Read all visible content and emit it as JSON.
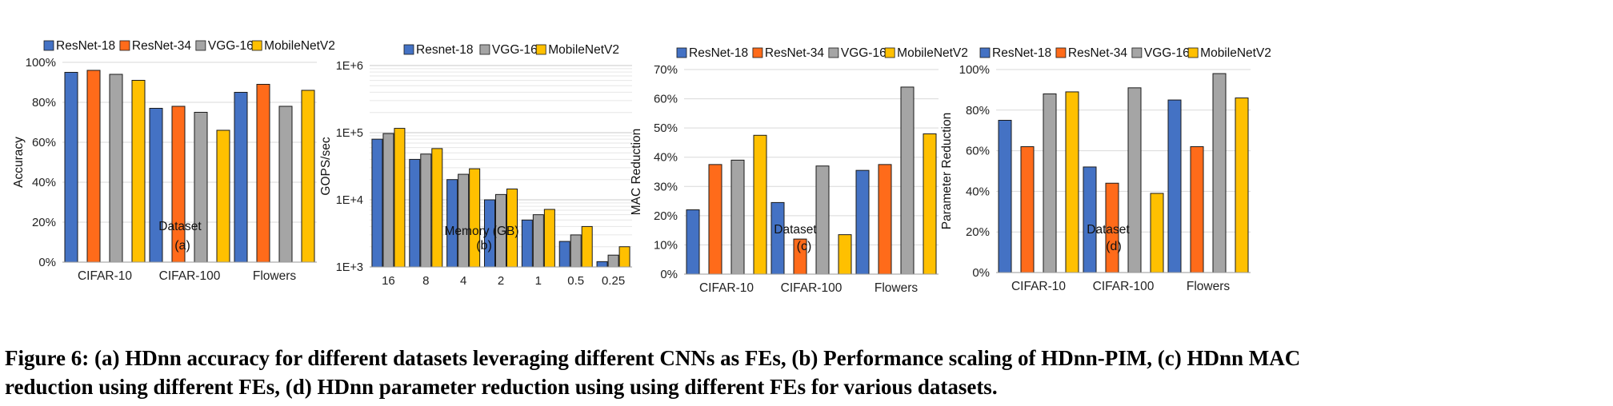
{
  "colors": {
    "ResNet-18": "#4472c4",
    "Resnet-18": "#4472c4",
    "ResNet-34": "#ff6b1a",
    "VGG-16": "#a5a5a5",
    "MobileNetV2": "#ffc000"
  },
  "chart_data": [
    {
      "id": "a",
      "type": "bar",
      "title": "",
      "legend": [
        "ResNet-18",
        "ResNet-34",
        "VGG-16",
        "MobileNetV2"
      ],
      "categories": [
        "CIFAR-10",
        "CIFAR-100",
        "Flowers"
      ],
      "series": [
        {
          "name": "ResNet-18",
          "values": [
            95,
            77,
            85
          ]
        },
        {
          "name": "ResNet-34",
          "values": [
            96,
            78,
            89
          ]
        },
        {
          "name": "VGG-16",
          "values": [
            94,
            75,
            78
          ]
        },
        {
          "name": "MobileNetV2",
          "values": [
            91,
            66,
            86
          ]
        }
      ],
      "ylabel": "Accuracy",
      "xlabel": "Dataset",
      "ylim": [
        0,
        100
      ],
      "yticks": [
        0,
        20,
        40,
        60,
        80,
        100
      ],
      "ytick_labels": [
        "0%",
        "20%",
        "40%",
        "60%",
        "80%",
        "100%"
      ],
      "panel_label": "(a)",
      "grid": true,
      "legend_position": "top"
    },
    {
      "id": "b",
      "type": "bar",
      "scale": "log",
      "legend": [
        "Resnet-18",
        "VGG-16",
        "MobileNetV2"
      ],
      "categories": [
        "16",
        "8",
        "4",
        "2",
        "1",
        "0.5",
        "0.25"
      ],
      "series": [
        {
          "name": "Resnet-18",
          "values": [
            80000,
            40000,
            20000,
            10000,
            5000,
            2400,
            1200
          ]
        },
        {
          "name": "VGG-16",
          "values": [
            97000,
            48000,
            24000,
            12000,
            6000,
            3000,
            1500
          ]
        },
        {
          "name": "MobileNetV2",
          "values": [
            116000,
            58000,
            29000,
            14500,
            7200,
            4000,
            2000
          ]
        }
      ],
      "ylabel": "GOPS/sec",
      "xlabel": "Memory (GB)",
      "ylim": [
        1000,
        1000000
      ],
      "yticks": [
        1000,
        10000,
        100000,
        1000000
      ],
      "ytick_labels": [
        "1E+3",
        "1E+4",
        "1E+5",
        "1E+6"
      ],
      "panel_label": "(b)",
      "grid": true,
      "legend_position": "top"
    },
    {
      "id": "c",
      "type": "bar",
      "legend": [
        "ResNet-18",
        "ResNet-34",
        "VGG-16",
        "MobileNetV2"
      ],
      "categories": [
        "CIFAR-10",
        "CIFAR-100",
        "Flowers"
      ],
      "series": [
        {
          "name": "ResNet-18",
          "values": [
            22,
            24.5,
            35.5
          ]
        },
        {
          "name": "ResNet-34",
          "values": [
            37.5,
            12,
            37.5
          ]
        },
        {
          "name": "VGG-16",
          "values": [
            39,
            37,
            64
          ]
        },
        {
          "name": "MobileNetV2",
          "values": [
            47.5,
            13.5,
            48
          ]
        }
      ],
      "ylabel": "MAC Reduction",
      "xlabel": "Dataset",
      "ylim": [
        0,
        70
      ],
      "yticks": [
        0,
        10,
        20,
        30,
        40,
        50,
        60,
        70
      ],
      "ytick_labels": [
        "0%",
        "10%",
        "20%",
        "30%",
        "40%",
        "50%",
        "60%",
        "70%"
      ],
      "panel_label": "(c)",
      "grid": true,
      "legend_position": "top"
    },
    {
      "id": "d",
      "type": "bar",
      "legend": [
        "ResNet-18",
        "ResNet-34",
        "VGG-16",
        "MobileNetV2"
      ],
      "categories": [
        "CIFAR-10",
        "CIFAR-100",
        "Flowers"
      ],
      "series": [
        {
          "name": "ResNet-18",
          "values": [
            75,
            52,
            85
          ]
        },
        {
          "name": "ResNet-34",
          "values": [
            62,
            44,
            62
          ]
        },
        {
          "name": "VGG-16",
          "values": [
            88,
            91,
            98
          ]
        },
        {
          "name": "MobileNetV2",
          "values": [
            89,
            39,
            86
          ]
        }
      ],
      "ylabel": "Parameter Reduction",
      "xlabel": "Dataset",
      "ylim": [
        0,
        100
      ],
      "yticks": [
        0,
        20,
        40,
        60,
        80,
        100
      ],
      "ytick_labels": [
        "0%",
        "20%",
        "40%",
        "60%",
        "80%",
        "100%"
      ],
      "panel_label": "(d)",
      "grid": true,
      "legend_position": "top"
    }
  ],
  "caption": "Figure 6: (a) HDnn accuracy for different datasets leveraging different CNNs as FEs, (b) Performance scaling of HDnn-PIM, (c) HDnn MAC\nreduction using different FEs, (d) HDnn parameter reduction using using different FEs for various datasets."
}
